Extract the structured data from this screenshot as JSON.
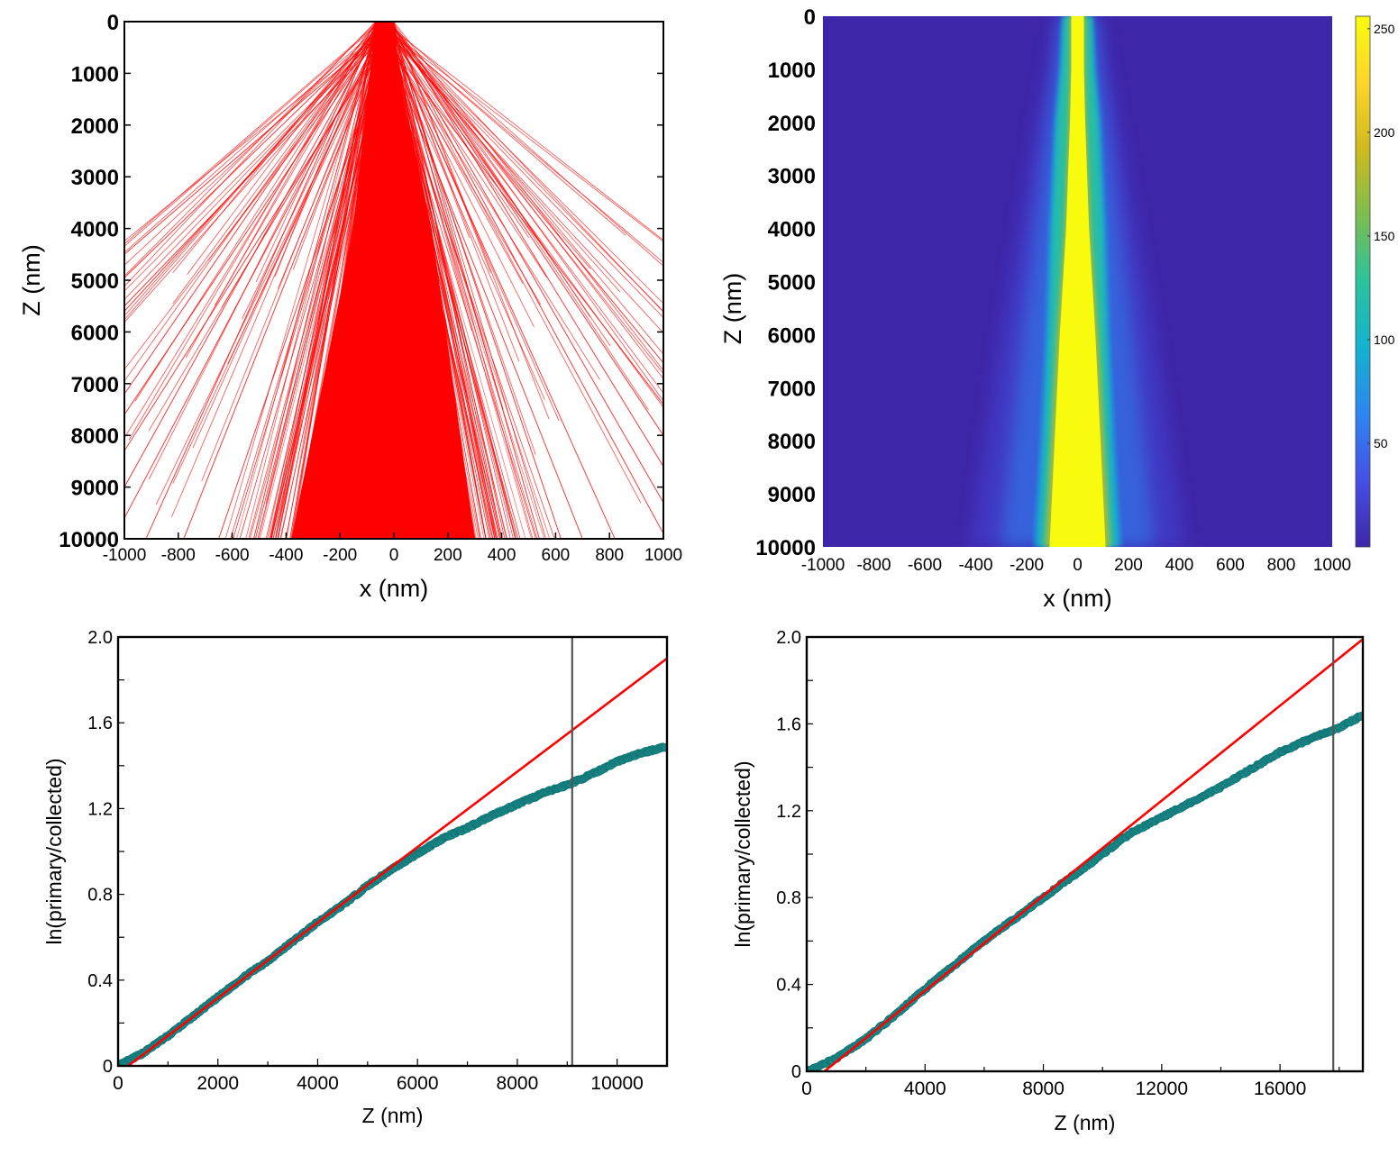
{
  "chart_data": [
    {
      "id": "a",
      "type": "line",
      "xlabel": "x (nm)",
      "ylabel": "Z (nm)",
      "xlim": [
        -1000,
        1000
      ],
      "ylim": [
        0,
        10000
      ],
      "y_inverted": true,
      "xticks": [
        -1000,
        -800,
        -600,
        -400,
        -200,
        0,
        200,
        400,
        600,
        800,
        1000
      ],
      "yticks": [
        0,
        1000,
        2000,
        3000,
        4000,
        5000,
        6000,
        7000,
        8000,
        9000,
        10000
      ],
      "series_color": "#ff0000",
      "beam_entry_x": [
        -70,
        0
      ],
      "trajectory_endpoints_sample": [
        {
          "z": 4500,
          "x": -1000
        },
        {
          "z": 4950,
          "x": -1000
        },
        {
          "z": 5500,
          "x": -1000
        },
        {
          "z": 5600,
          "x": -1000
        },
        {
          "z": 7200,
          "x": -1000
        },
        {
          "z": 7600,
          "x": -1000
        },
        {
          "z": 8300,
          "x": -1000
        },
        {
          "z": 9000,
          "x": -1000
        },
        {
          "z": 9600,
          "x": -1000
        },
        {
          "z": 10000,
          "x": -920
        },
        {
          "z": 10000,
          "x": -780
        },
        {
          "z": 10000,
          "x": -650
        },
        {
          "z": 10000,
          "x": -520
        },
        {
          "z": 10000,
          "x": -440
        },
        {
          "z": 10000,
          "x": -340
        },
        {
          "z": 10000,
          "x": -260
        },
        {
          "z": 10000,
          "x": -200
        },
        {
          "z": 10000,
          "x": -140
        },
        {
          "z": 10000,
          "x": -80
        },
        {
          "z": 10000,
          "x": 0
        },
        {
          "z": 10000,
          "x": 80
        },
        {
          "z": 10000,
          "x": 150
        },
        {
          "z": 10000,
          "x": 220
        },
        {
          "z": 10000,
          "x": 300
        },
        {
          "z": 10000,
          "x": 380
        },
        {
          "z": 10000,
          "x": 460
        },
        {
          "z": 10000,
          "x": 540
        },
        {
          "z": 10000,
          "x": 620
        },
        {
          "z": 10000,
          "x": 700
        },
        {
          "z": 10000,
          "x": 820
        },
        {
          "z": 9900,
          "x": 1000
        },
        {
          "z": 9300,
          "x": 1000
        },
        {
          "z": 8600,
          "x": 1000
        },
        {
          "z": 8000,
          "x": 1000
        },
        {
          "z": 7400,
          "x": 1000
        },
        {
          "z": 6600,
          "x": 1000
        }
      ]
    },
    {
      "id": "b",
      "type": "heatmap",
      "xlabel": "x (nm)",
      "ylabel": "Z (nm)",
      "xlim": [
        -1000,
        1000
      ],
      "ylim": [
        0,
        10000
      ],
      "y_inverted": true,
      "xticks": [
        -1000,
        -800,
        -600,
        -400,
        -200,
        0,
        200,
        400,
        600,
        800,
        1000
      ],
      "yticks": [
        0,
        1000,
        2000,
        3000,
        4000,
        5000,
        6000,
        7000,
        8000,
        9000,
        10000
      ],
      "colorbar": {
        "min": 0,
        "max": 256,
        "ticks": [
          50,
          100,
          150,
          200,
          250
        ]
      },
      "colormap": [
        "#3e26a8",
        "#4550e6",
        "#2e86f0",
        "#13b2d0",
        "#2bc29d",
        "#7dbd4f",
        "#cfb91d",
        "#fdd62b",
        "#f9fb0e"
      ],
      "background_color": "#3e26a8",
      "core_halfwidth_profile": [
        {
          "z": 0,
          "core": 25,
          "glow": 60,
          "halo": 90
        },
        {
          "z": 1000,
          "core": 25,
          "glow": 70,
          "halo": 120
        },
        {
          "z": 2000,
          "core": 30,
          "glow": 90,
          "halo": 160
        },
        {
          "z": 4000,
          "core": 45,
          "glow": 110,
          "halo": 230
        },
        {
          "z": 6000,
          "core": 70,
          "glow": 125,
          "halo": 300
        },
        {
          "z": 8000,
          "core": 90,
          "glow": 145,
          "halo": 360
        },
        {
          "z": 10000,
          "core": 110,
          "glow": 170,
          "halo": 420
        }
      ]
    },
    {
      "id": "c",
      "type": "scatter",
      "xlabel": "Z (nm)",
      "ylabel": "ln(primary/collected)",
      "xlim": [
        0,
        11000
      ],
      "ylim": [
        0,
        2.0
      ],
      "xticks": [
        0,
        2000,
        4000,
        6000,
        8000,
        10000
      ],
      "yticks": [
        0,
        0.4,
        0.8,
        1.2,
        1.6,
        2.0
      ],
      "yticklabels": [
        "0",
        "0.4",
        "0.8",
        "1.2",
        "1.6",
        "2.0"
      ],
      "vline_x": 9100,
      "vline_color": "#555555",
      "fit_line": {
        "color": "#ff0000",
        "x": [
          200,
          11000
        ],
        "y": [
          0,
          1.9
        ]
      },
      "series": [
        {
          "color": "#1e8c8c",
          "x": [
            0,
            500,
            1000,
            1500,
            2000,
            2500,
            3000,
            3500,
            4000,
            4500,
            5000,
            5500,
            6000,
            6500,
            7000,
            7500,
            8000,
            8500,
            9000,
            9500,
            10000,
            10500,
            11000
          ],
          "y": [
            0.0,
            0.06,
            0.14,
            0.23,
            0.32,
            0.41,
            0.49,
            0.58,
            0.67,
            0.75,
            0.84,
            0.92,
            0.99,
            1.06,
            1.11,
            1.17,
            1.22,
            1.27,
            1.31,
            1.36,
            1.42,
            1.46,
            1.49
          ]
        }
      ]
    },
    {
      "id": "d",
      "type": "scatter",
      "xlabel": "Z (nm)",
      "ylabel": "ln(primary/collected)",
      "xlim": [
        0,
        18800
      ],
      "ylim": [
        0,
        2.0
      ],
      "xticks": [
        0,
        4000,
        8000,
        12000,
        16000
      ],
      "yticks": [
        0,
        0.4,
        0.8,
        1.2,
        1.6,
        2.0
      ],
      "yticklabels": [
        "0",
        "0.4",
        "0.8",
        "1.2",
        "1.6",
        "2.0"
      ],
      "vline_x": 17800,
      "vline_color": "#555555",
      "fit_line": {
        "color": "#ff0000",
        "x": [
          600,
          18800
        ],
        "y": [
          0,
          1.99
        ]
      },
      "series": [
        {
          "color": "#1e8c8c",
          "x": [
            0,
            1000,
            2000,
            3000,
            4000,
            5000,
            6000,
            7000,
            8000,
            9000,
            10000,
            11000,
            12000,
            13000,
            14000,
            15000,
            16000,
            17000,
            17800,
            18800
          ],
          "y": [
            0.0,
            0.06,
            0.15,
            0.26,
            0.38,
            0.49,
            0.6,
            0.7,
            0.8,
            0.9,
            1.0,
            1.1,
            1.17,
            1.24,
            1.31,
            1.39,
            1.47,
            1.53,
            1.57,
            1.64
          ]
        }
      ]
    }
  ]
}
